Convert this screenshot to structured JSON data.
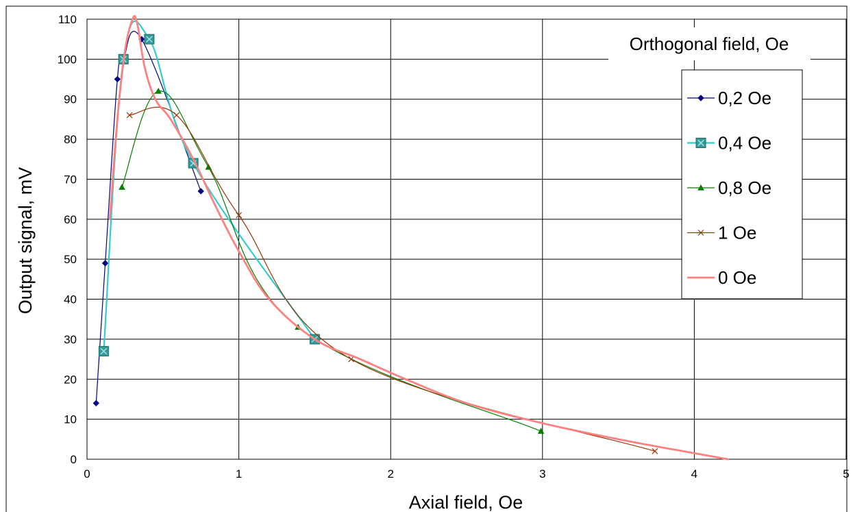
{
  "chart_data": {
    "type": "line",
    "title": "",
    "xlabel": "Axial field, Oe",
    "ylabel": "Output signal,  mV",
    "xlim": [
      0,
      5
    ],
    "ylim": [
      0,
      110
    ],
    "xticks": [
      "0",
      "1",
      "2",
      "3",
      "4",
      "5"
    ],
    "yticks": [
      "0",
      "10",
      "20",
      "30",
      "40",
      "50",
      "60",
      "70",
      "80",
      "90",
      "100",
      "110"
    ],
    "grid": true,
    "legend": {
      "title": "Orthogonal field, Oe",
      "placement": "top-right"
    },
    "series": [
      {
        "name": "0,2 Oe",
        "color": "#000080",
        "marker": "diamond",
        "x": [
          0.06,
          0.12,
          0.2,
          0.24,
          0.36,
          0.75
        ],
        "y": [
          14,
          49,
          95,
          100,
          105,
          67
        ]
      },
      {
        "name": "0,4 Oe",
        "color": "#33cccc",
        "marker": "square",
        "x": [
          0.11,
          0.24,
          0.41,
          0.7,
          1.5
        ],
        "y": [
          27,
          100,
          105,
          74,
          30
        ]
      },
      {
        "name": "0,8 Oe",
        "color": "#008000",
        "marker": "triangle",
        "x": [
          0.23,
          0.47,
          0.8,
          1.39,
          2.99
        ],
        "y": [
          68,
          92,
          73,
          33,
          7
        ]
      },
      {
        "name": "1 Oe",
        "color": "#993300",
        "marker": "x",
        "x": [
          0.28,
          0.59,
          1.0,
          1.74,
          3.74
        ],
        "y": [
          86,
          86,
          61,
          25,
          2
        ]
      },
      {
        "name": "0 Oe",
        "color": "#ff8080",
        "marker": "none",
        "x": [
          0.15,
          0.2,
          0.25,
          0.3,
          0.33,
          0.38,
          0.45,
          0.55,
          0.7,
          0.85,
          1.0,
          1.2,
          1.5,
          1.8,
          2.1,
          2.5,
          3.0,
          3.5,
          4.0,
          4.22
        ],
        "y": [
          60,
          85,
          102,
          110,
          109,
          98,
          90,
          85,
          75,
          63,
          52,
          40,
          30,
          25,
          20,
          14,
          9,
          5,
          1.5,
          0
        ]
      }
    ]
  }
}
